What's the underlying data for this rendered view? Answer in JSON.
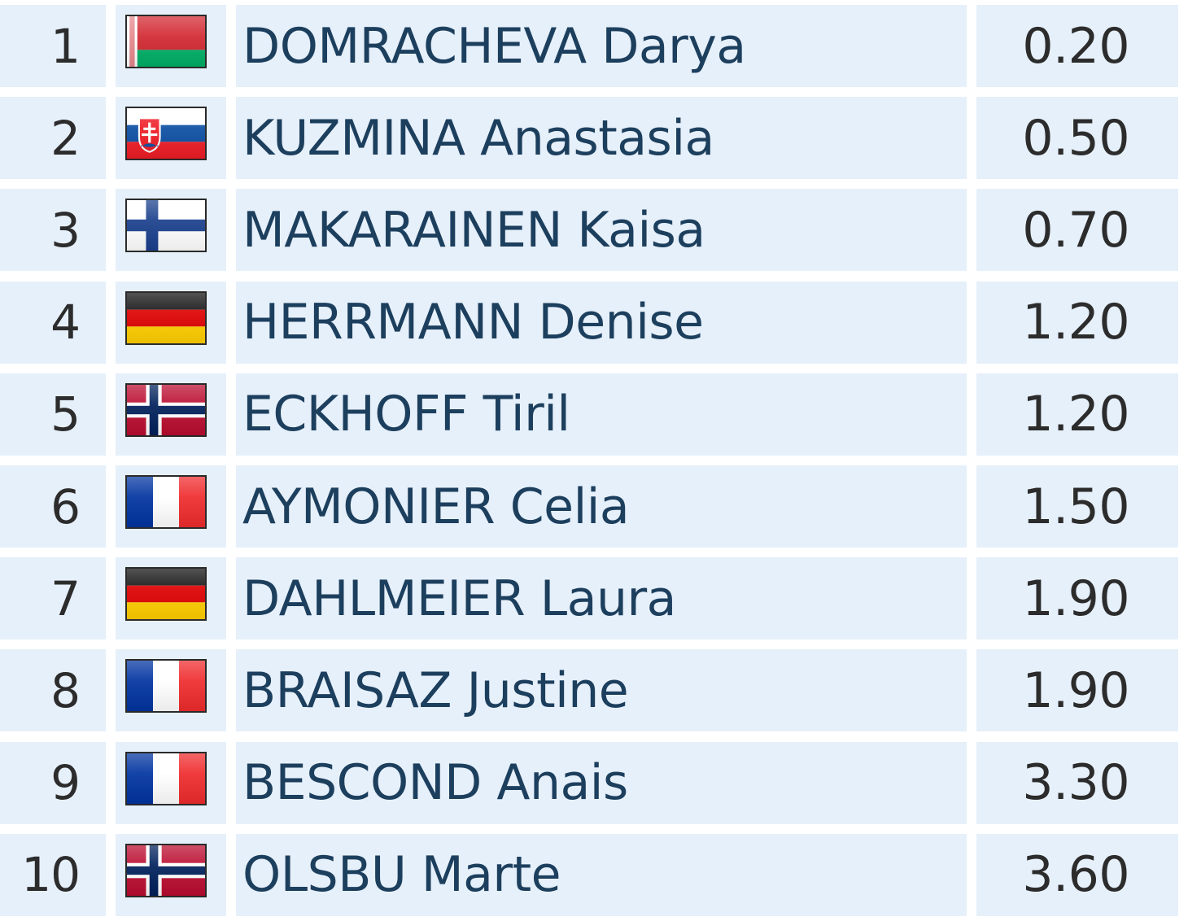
{
  "results": [
    {
      "rank": "1",
      "name": "DOMRACHEVA Darya",
      "score": "0.20",
      "flag_icon": "belarus-flag-icon"
    },
    {
      "rank": "2",
      "name": "KUZMINA Anastasia",
      "score": "0.50",
      "flag_icon": "slovakia-flag-icon"
    },
    {
      "rank": "3",
      "name": "MAKARAINEN Kaisa",
      "score": "0.70",
      "flag_icon": "finland-flag-icon"
    },
    {
      "rank": "4",
      "name": "HERRMANN Denise",
      "score": "1.20",
      "flag_icon": "germany-flag-icon"
    },
    {
      "rank": "5",
      "name": "ECKHOFF Tiril",
      "score": "1.20",
      "flag_icon": "norway-flag-icon"
    },
    {
      "rank": "6",
      "name": "AYMONIER Celia",
      "score": "1.50",
      "flag_icon": "france-flag-icon"
    },
    {
      "rank": "7",
      "name": "DAHLMEIER Laura",
      "score": "1.90",
      "flag_icon": "germany-flag-icon"
    },
    {
      "rank": "8",
      "name": "BRAISAZ Justine",
      "score": "1.90",
      "flag_icon": "france-flag-icon"
    },
    {
      "rank": "9",
      "name": "BESCOND Anais",
      "score": "3.30",
      "flag_icon": "france-flag-icon"
    },
    {
      "rank": "10",
      "name": "OLSBU Marte",
      "score": "3.60",
      "flag_icon": "norway-flag-icon"
    }
  ],
  "colors": {
    "row_background": "#e6f0fa",
    "name_text": "#1d3f5e",
    "number_text": "#2c2c2c"
  }
}
